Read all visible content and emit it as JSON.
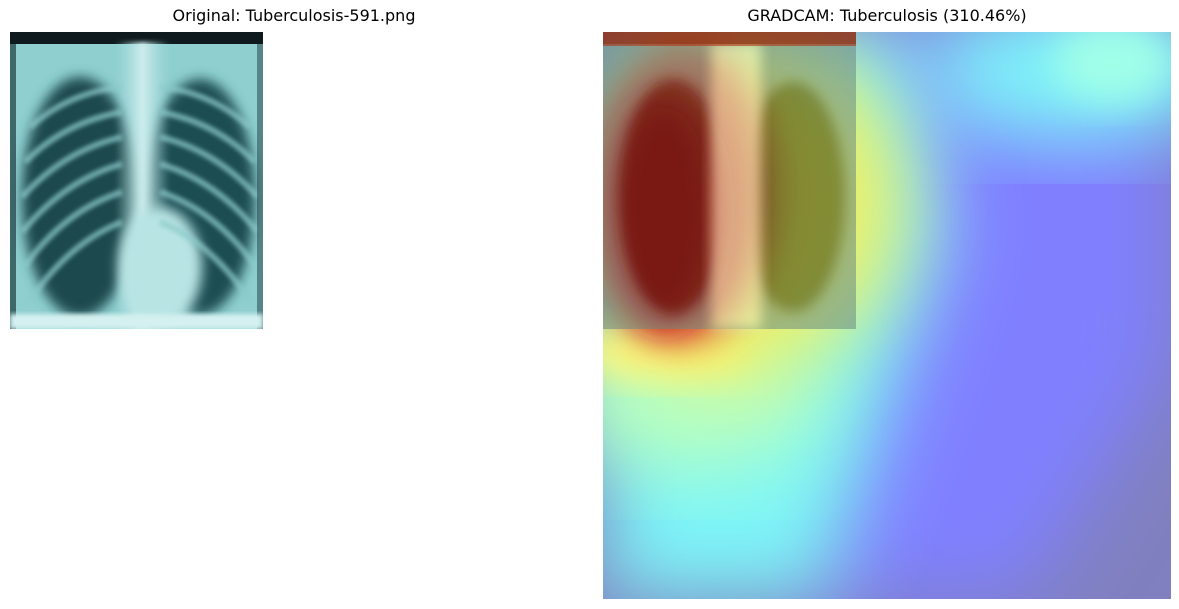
{
  "left_panel": {
    "title": "Original: Tuberculosis-591.png"
  },
  "right_panel": {
    "title": "GRADCAM: Tuberculosis (310.46%)"
  },
  "colors": {
    "xray_tint": "#9fd8d8",
    "xray_dark": "#0e2a2e",
    "heat_red": "#c8181a",
    "heat_yellow": "#f4f060",
    "heat_cyan": "#7ef6f8",
    "heat_blue": "#8080ff",
    "heat_slate": "#8080c0"
  }
}
